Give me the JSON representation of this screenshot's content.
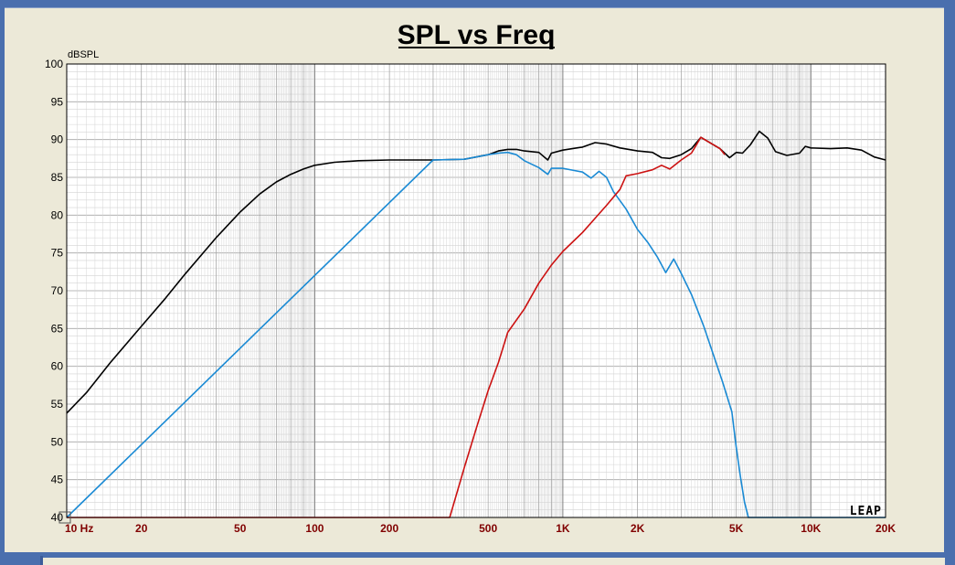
{
  "chart_data": {
    "type": "line",
    "title": "SPL vs Freq",
    "ylabel": "dBSPL",
    "x_scale": "log",
    "xlim": [
      10,
      20000
    ],
    "ylim": [
      40,
      100
    ],
    "grid": true,
    "y_ticks": [
      {
        "value": 100,
        "label": "100"
      },
      {
        "value": 95,
        "label": "95"
      },
      {
        "value": 90,
        "label": "90"
      },
      {
        "value": 85,
        "label": "85"
      },
      {
        "value": 80,
        "label": "80"
      },
      {
        "value": 75,
        "label": "75"
      },
      {
        "value": 70,
        "label": "70"
      },
      {
        "value": 65,
        "label": "65"
      },
      {
        "value": 60,
        "label": "60"
      },
      {
        "value": 55,
        "label": "55"
      },
      {
        "value": 50,
        "label": "50"
      },
      {
        "value": 45,
        "label": "45"
      },
      {
        "value": 40,
        "label": "40"
      }
    ],
    "x_ticks": [
      {
        "value": 10,
        "label": "10 Hz"
      },
      {
        "value": 20,
        "label": "20"
      },
      {
        "value": 50,
        "label": "50"
      },
      {
        "value": 100,
        "label": "100"
      },
      {
        "value": 200,
        "label": "200"
      },
      {
        "value": 500,
        "label": "500"
      },
      {
        "value": 1000,
        "label": "1K"
      },
      {
        "value": 2000,
        "label": "2K"
      },
      {
        "value": 5000,
        "label": "5K"
      },
      {
        "value": 10000,
        "label": "10K"
      },
      {
        "value": 20000,
        "label": "20K"
      }
    ],
    "series": [
      {
        "color": "#000000",
        "points": [
          [
            10,
            53.8
          ],
          [
            12,
            56.5
          ],
          [
            15,
            60.5
          ],
          [
            20,
            65.3
          ],
          [
            25,
            69
          ],
          [
            30,
            72.2
          ],
          [
            40,
            77
          ],
          [
            50,
            80.4
          ],
          [
            60,
            82.8
          ],
          [
            70,
            84.4
          ],
          [
            80,
            85.4
          ],
          [
            90,
            86.1
          ],
          [
            100,
            86.6
          ],
          [
            120,
            87
          ],
          [
            150,
            87.2
          ],
          [
            200,
            87.3
          ],
          [
            300,
            87.3
          ],
          [
            400,
            87.4
          ],
          [
            500,
            88
          ],
          [
            550,
            88.5
          ],
          [
            600,
            88.7
          ],
          [
            650,
            88.7
          ],
          [
            700,
            88.5
          ],
          [
            800,
            88.3
          ],
          [
            870,
            87.3
          ],
          [
            900,
            88.2
          ],
          [
            1000,
            88.6
          ],
          [
            1200,
            89
          ],
          [
            1350,
            89.6
          ],
          [
            1500,
            89.4
          ],
          [
            1700,
            88.9
          ],
          [
            2000,
            88.5
          ],
          [
            2300,
            88.3
          ],
          [
            2500,
            87.6
          ],
          [
            2700,
            87.5
          ],
          [
            3000,
            88
          ],
          [
            3300,
            88.8
          ],
          [
            3600,
            90.3
          ],
          [
            4000,
            89.4
          ],
          [
            4300,
            88.8
          ],
          [
            4700,
            87.6
          ],
          [
            5000,
            88.3
          ],
          [
            5300,
            88.2
          ],
          [
            5700,
            89.3
          ],
          [
            6200,
            91.1
          ],
          [
            6700,
            90.2
          ],
          [
            7200,
            88.4
          ],
          [
            8000,
            87.9
          ],
          [
            9000,
            88.2
          ],
          [
            9500,
            89.1
          ],
          [
            10000,
            88.9
          ],
          [
            12000,
            88.8
          ],
          [
            14000,
            88.9
          ],
          [
            16000,
            88.6
          ],
          [
            18000,
            87.7
          ],
          [
            20000,
            87.3
          ]
        ]
      },
      {
        "color": "#1a8ad4",
        "points": [
          [
            10,
            40
          ],
          [
            300,
            87.3
          ],
          [
            400,
            87.4
          ],
          [
            500,
            88
          ],
          [
            550,
            88.2
          ],
          [
            600,
            88.3
          ],
          [
            650,
            88
          ],
          [
            700,
            87.2
          ],
          [
            800,
            86.3
          ],
          [
            870,
            85.4
          ],
          [
            900,
            86.2
          ],
          [
            1000,
            86.2
          ],
          [
            1200,
            85.7
          ],
          [
            1300,
            84.9
          ],
          [
            1400,
            85.8
          ],
          [
            1500,
            85
          ],
          [
            1600,
            83.1
          ],
          [
            1800,
            80.8
          ],
          [
            2000,
            78.1
          ],
          [
            2200,
            76.4
          ],
          [
            2400,
            74.5
          ],
          [
            2600,
            72.4
          ],
          [
            2800,
            74.2
          ],
          [
            3000,
            72.3
          ],
          [
            3300,
            69.5
          ],
          [
            3700,
            65.3
          ],
          [
            4000,
            62
          ],
          [
            4400,
            58
          ],
          [
            4800,
            54
          ],
          [
            5000,
            49.3
          ],
          [
            5200,
            45.4
          ],
          [
            5400,
            42
          ],
          [
            5600,
            40
          ],
          [
            20000,
            40
          ]
        ]
      },
      {
        "color": "#cc1111",
        "points": [
          [
            10,
            40
          ],
          [
            350,
            40
          ],
          [
            400,
            46.5
          ],
          [
            450,
            52
          ],
          [
            500,
            56.8
          ],
          [
            550,
            60.5
          ],
          [
            600,
            64.5
          ],
          [
            700,
            67.6
          ],
          [
            800,
            71
          ],
          [
            900,
            73.4
          ],
          [
            1000,
            75.2
          ],
          [
            1200,
            77.7
          ],
          [
            1500,
            81.3
          ],
          [
            1700,
            83.4
          ],
          [
            1800,
            85.2
          ],
          [
            2000,
            85.5
          ],
          [
            2300,
            86
          ],
          [
            2500,
            86.6
          ],
          [
            2700,
            86.1
          ],
          [
            3000,
            87.3
          ],
          [
            3300,
            88.2
          ],
          [
            3600,
            90.3
          ],
          [
            4000,
            89.4
          ],
          [
            4300,
            88.8
          ],
          [
            4500,
            88
          ]
        ]
      }
    ]
  },
  "watermark": "LEAP",
  "colors": {
    "frame": "#4a6fae",
    "panel": "#ece9d8",
    "grid": "#b0b0b0",
    "tick_labels_x": "#800000"
  }
}
